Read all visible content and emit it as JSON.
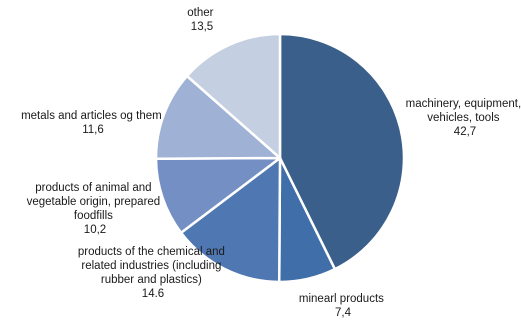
{
  "chart_data": {
    "type": "pie",
    "slices": [
      {
        "label_lines": [
          "machinery, equipment,",
          "vehicles, tools"
        ],
        "value_text": "42,7",
        "value": 42.7,
        "color": "#3a5f8a"
      },
      {
        "label_lines": [
          "minearl products"
        ],
        "value_text": "7,4",
        "value": 7.4,
        "color": "#3f6ea8"
      },
      {
        "label_lines": [
          "products of the chemical and",
          "related industries (including",
          "rubber and plastics)"
        ],
        "value_text": "14.6",
        "value": 14.6,
        "color": "#4f78b3"
      },
      {
        "label_lines": [
          "products of animal and",
          "vegetable origin, prepared",
          "foodfills"
        ],
        "value_text": "10,2",
        "value": 10.2,
        "color": "#748fc4"
      },
      {
        "label_lines": [
          "metals and articles og them"
        ],
        "value_text": "11,6",
        "value": 11.6,
        "color": "#9fb1d5"
      },
      {
        "label_lines": [
          "other"
        ],
        "value_text": "13,5",
        "value": 13.5,
        "color": "#c5cfe2"
      }
    ]
  }
}
